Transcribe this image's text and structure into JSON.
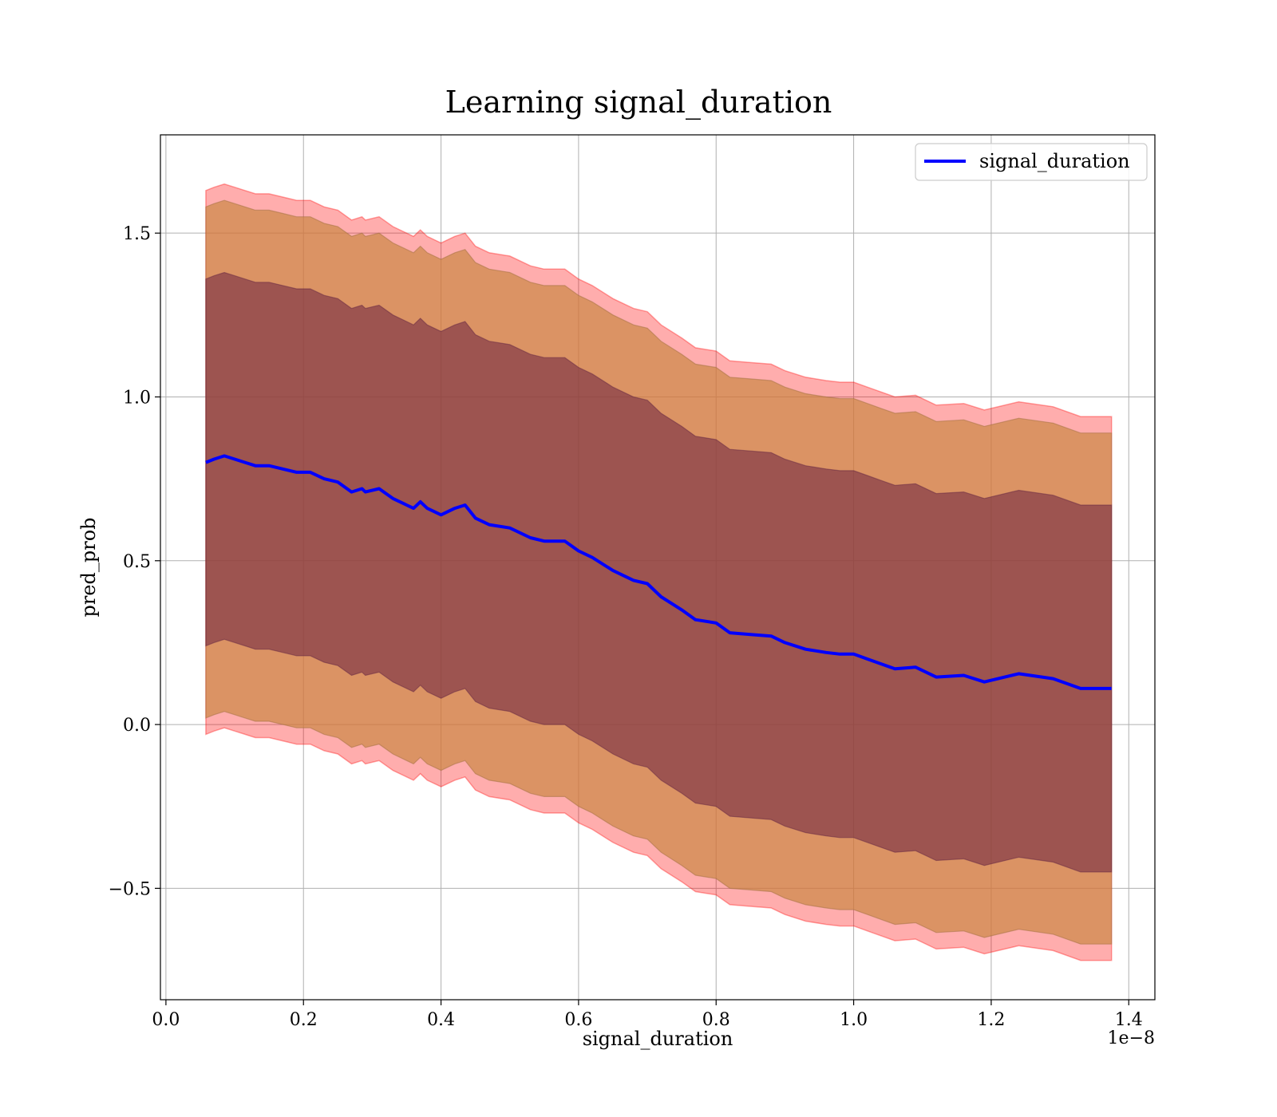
{
  "chart_data": {
    "type": "line",
    "title": "Learning signal_duration",
    "xlabel": "signal_duration",
    "ylabel": "pred_prob",
    "x_offset_label": "1e−8",
    "xlim": [
      -0.008,
      1.438
    ],
    "ylim": [
      -0.84,
      1.8
    ],
    "x_ticks": [
      0.0,
      0.2,
      0.4,
      0.6,
      0.8,
      1.0,
      1.2,
      1.4
    ],
    "x_tick_labels": [
      "0.0",
      "0.2",
      "0.4",
      "0.6",
      "0.8",
      "1.0",
      "1.2",
      "1.4"
    ],
    "y_ticks": [
      -0.5,
      0.0,
      0.5,
      1.0,
      1.5
    ],
    "y_tick_labels": [
      "−0.5",
      "0.0",
      "0.5",
      "1.0",
      "1.5"
    ],
    "grid": true,
    "legend_position": "top-right",
    "colors": {
      "line": "#0000ff",
      "band_outer": "#ff0000",
      "band_middle": "#cc8844",
      "band_inner": "#6a2040"
    },
    "series": [
      {
        "name": "signal_duration",
        "x": [
          0.058,
          0.07,
          0.085,
          0.1,
          0.115,
          0.13,
          0.15,
          0.17,
          0.19,
          0.21,
          0.23,
          0.25,
          0.27,
          0.285,
          0.29,
          0.31,
          0.33,
          0.35,
          0.36,
          0.37,
          0.38,
          0.4,
          0.42,
          0.435,
          0.45,
          0.47,
          0.5,
          0.53,
          0.55,
          0.58,
          0.6,
          0.62,
          0.65,
          0.68,
          0.7,
          0.72,
          0.75,
          0.77,
          0.8,
          0.82,
          0.85,
          0.88,
          0.9,
          0.93,
          0.96,
          0.98,
          1.0,
          1.02,
          1.04,
          1.06,
          1.09,
          1.12,
          1.16,
          1.19,
          1.24,
          1.29,
          1.33,
          1.375
        ],
        "y": [
          0.8,
          0.81,
          0.82,
          0.81,
          0.8,
          0.79,
          0.79,
          0.78,
          0.77,
          0.77,
          0.75,
          0.74,
          0.71,
          0.72,
          0.71,
          0.72,
          0.69,
          0.67,
          0.66,
          0.68,
          0.66,
          0.64,
          0.66,
          0.67,
          0.63,
          0.61,
          0.6,
          0.57,
          0.56,
          0.56,
          0.53,
          0.51,
          0.47,
          0.44,
          0.43,
          0.39,
          0.35,
          0.32,
          0.31,
          0.28,
          0.275,
          0.27,
          0.25,
          0.23,
          0.22,
          0.215,
          0.215,
          0.2,
          0.185,
          0.17,
          0.175,
          0.145,
          0.15,
          0.13,
          0.155,
          0.14,
          0.11,
          0.11
        ],
        "upper_inner": [
          1.36,
          1.37,
          1.38,
          1.37,
          1.36,
          1.35,
          1.35,
          1.34,
          1.33,
          1.33,
          1.31,
          1.3,
          1.27,
          1.28,
          1.27,
          1.28,
          1.25,
          1.23,
          1.22,
          1.24,
          1.22,
          1.2,
          1.22,
          1.23,
          1.19,
          1.17,
          1.16,
          1.13,
          1.12,
          1.12,
          1.09,
          1.07,
          1.03,
          1.0,
          0.99,
          0.95,
          0.91,
          0.88,
          0.87,
          0.84,
          0.835,
          0.83,
          0.81,
          0.79,
          0.78,
          0.775,
          0.775,
          0.76,
          0.745,
          0.73,
          0.735,
          0.705,
          0.71,
          0.69,
          0.715,
          0.7,
          0.67,
          0.67
        ],
        "lower_inner": [
          0.24,
          0.25,
          0.26,
          0.25,
          0.24,
          0.23,
          0.23,
          0.22,
          0.21,
          0.21,
          0.19,
          0.18,
          0.15,
          0.16,
          0.15,
          0.16,
          0.13,
          0.11,
          0.1,
          0.12,
          0.1,
          0.08,
          0.1,
          0.11,
          0.07,
          0.05,
          0.04,
          0.01,
          0.0,
          0.0,
          -0.03,
          -0.05,
          -0.09,
          -0.12,
          -0.13,
          -0.17,
          -0.21,
          -0.24,
          -0.25,
          -0.28,
          -0.285,
          -0.29,
          -0.31,
          -0.33,
          -0.34,
          -0.345,
          -0.345,
          -0.36,
          -0.375,
          -0.39,
          -0.385,
          -0.415,
          -0.41,
          -0.43,
          -0.405,
          -0.42,
          -0.45,
          -0.45
        ],
        "upper_middle": [
          1.58,
          1.59,
          1.6,
          1.59,
          1.58,
          1.57,
          1.57,
          1.56,
          1.55,
          1.55,
          1.53,
          1.52,
          1.49,
          1.5,
          1.49,
          1.5,
          1.47,
          1.45,
          1.44,
          1.46,
          1.44,
          1.42,
          1.44,
          1.45,
          1.41,
          1.39,
          1.38,
          1.35,
          1.34,
          1.34,
          1.31,
          1.29,
          1.25,
          1.22,
          1.21,
          1.17,
          1.13,
          1.1,
          1.09,
          1.06,
          1.055,
          1.05,
          1.03,
          1.01,
          1.0,
          0.995,
          0.995,
          0.98,
          0.965,
          0.95,
          0.955,
          0.925,
          0.93,
          0.91,
          0.935,
          0.92,
          0.89,
          0.89
        ],
        "lower_middle": [
          0.02,
          0.03,
          0.04,
          0.03,
          0.02,
          0.01,
          0.01,
          0.0,
          -0.01,
          -0.01,
          -0.03,
          -0.04,
          -0.07,
          -0.06,
          -0.07,
          -0.06,
          -0.09,
          -0.11,
          -0.12,
          -0.1,
          -0.12,
          -0.14,
          -0.12,
          -0.11,
          -0.15,
          -0.17,
          -0.18,
          -0.21,
          -0.22,
          -0.22,
          -0.25,
          -0.27,
          -0.31,
          -0.34,
          -0.35,
          -0.39,
          -0.43,
          -0.46,
          -0.47,
          -0.5,
          -0.505,
          -0.51,
          -0.53,
          -0.55,
          -0.56,
          -0.565,
          -0.565,
          -0.58,
          -0.595,
          -0.61,
          -0.605,
          -0.635,
          -0.63,
          -0.65,
          -0.625,
          -0.64,
          -0.67,
          -0.67
        ],
        "upper_outer": [
          1.63,
          1.64,
          1.65,
          1.64,
          1.63,
          1.62,
          1.62,
          1.61,
          1.6,
          1.6,
          1.58,
          1.57,
          1.54,
          1.55,
          1.54,
          1.55,
          1.52,
          1.5,
          1.49,
          1.51,
          1.49,
          1.47,
          1.49,
          1.5,
          1.46,
          1.44,
          1.43,
          1.4,
          1.39,
          1.39,
          1.36,
          1.34,
          1.3,
          1.27,
          1.26,
          1.22,
          1.18,
          1.15,
          1.14,
          1.11,
          1.105,
          1.1,
          1.08,
          1.06,
          1.05,
          1.045,
          1.045,
          1.03,
          1.015,
          1.0,
          1.005,
          0.975,
          0.98,
          0.96,
          0.985,
          0.97,
          0.94,
          0.94
        ],
        "lower_outer": [
          -0.03,
          -0.02,
          -0.01,
          -0.02,
          -0.03,
          -0.04,
          -0.04,
          -0.05,
          -0.06,
          -0.06,
          -0.08,
          -0.09,
          -0.12,
          -0.11,
          -0.12,
          -0.11,
          -0.14,
          -0.16,
          -0.17,
          -0.15,
          -0.17,
          -0.19,
          -0.17,
          -0.16,
          -0.2,
          -0.22,
          -0.23,
          -0.26,
          -0.27,
          -0.27,
          -0.3,
          -0.32,
          -0.36,
          -0.39,
          -0.4,
          -0.44,
          -0.48,
          -0.51,
          -0.52,
          -0.55,
          -0.555,
          -0.56,
          -0.58,
          -0.6,
          -0.61,
          -0.615,
          -0.615,
          -0.63,
          -0.645,
          -0.66,
          -0.655,
          -0.685,
          -0.68,
          -0.7,
          -0.675,
          -0.69,
          -0.72,
          -0.72
        ]
      }
    ]
  }
}
